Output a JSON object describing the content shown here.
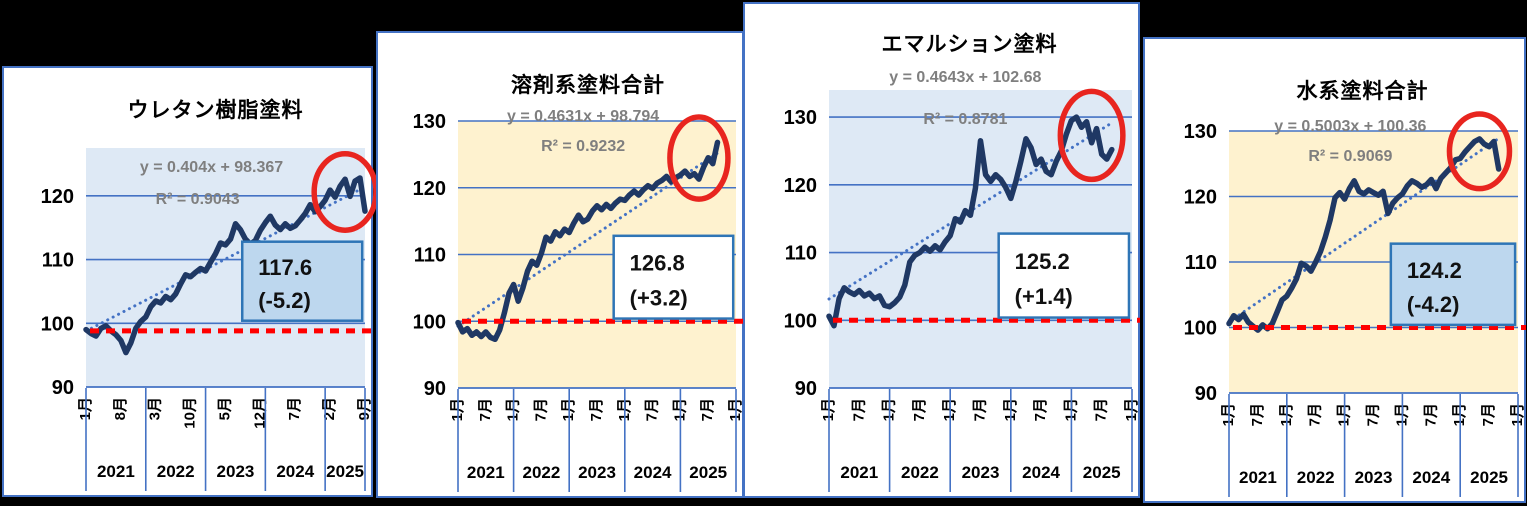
{
  "background": "#000000",
  "colors": {
    "grid": "#4472C4",
    "panel_border": "#4472C4",
    "data_line": "#1F3864",
    "trend_line": "#4472C4",
    "ref_line": "#FF0000",
    "ellipse": "#E8251F",
    "callout_border": "#2E75B6",
    "eq_text": "#7F7F7F",
    "plot_bg_blue": "#DEE9F5",
    "plot_bg_cream": "#FEF2CF"
  },
  "chart_data": [
    {
      "type": "line",
      "title": "ウレタン樹脂塗料",
      "equation": "y = 0.404x + 98.367",
      "r2_label": "R² = 0.9043",
      "trend": {
        "slope": 0.404,
        "intercept": 98.367
      },
      "callout": {
        "value": "117.6",
        "change": "(-5.2)",
        "fill": "#BDD7EE"
      },
      "plot_bg": "#DEE9F5",
      "ylim": [
        90,
        127.5
      ],
      "yticks": [
        90,
        100,
        110,
        120
      ],
      "ref_line": 98.8,
      "axis_slots": 57,
      "x_tick_labels": [
        "1月",
        "8月",
        "3月",
        "10月",
        "5月",
        "12月",
        "7月",
        "2月",
        "9月"
      ],
      "x_tick_idx": [
        0,
        7,
        14,
        21,
        28,
        35,
        42,
        49,
        56
      ],
      "year_labels": [
        "2021",
        "2022",
        "2023",
        "2024",
        "2025"
      ],
      "year_boundaries": [
        0,
        12,
        24,
        36,
        48,
        56
      ],
      "values": [
        99.0,
        98.4,
        98.0,
        99.2,
        99.6,
        98.8,
        98.2,
        97.3,
        95.4,
        96.9,
        99.2,
        100.3,
        101.0,
        102.6,
        103.5,
        103.2,
        104.2,
        103.7,
        104.6,
        106.2,
        107.6,
        107.3,
        108.0,
        108.6,
        108.2,
        109.6,
        110.9,
        112.6,
        112.3,
        113.2,
        115.6,
        114.7,
        113.2,
        112.4,
        113.0,
        114.6,
        115.8,
        116.8,
        115.4,
        114.7,
        115.6,
        114.9,
        115.3,
        116.2,
        117.2,
        118.6,
        117.5,
        118.3,
        119.3,
        120.9,
        119.8,
        121.5,
        122.6,
        119.9,
        122.3,
        122.8,
        117.6
      ]
    },
    {
      "type": "line",
      "title": "溶剤系塗料合計",
      "equation": "y = 0.4631x + 98.794",
      "r2_label": "R² = 0.9232",
      "trend": {
        "slope": 0.4631,
        "intercept": 98.794
      },
      "callout": {
        "value": "126.8",
        "change": "(+3.2)",
        "fill": "#FFFFFF"
      },
      "plot_bg": "#FEF2CF",
      "ylim": [
        90,
        130
      ],
      "yticks": [
        90,
        100,
        110,
        120,
        130
      ],
      "ref_line": 100,
      "axis_slots": 61,
      "x_tick_labels": [
        "1月",
        "7月",
        "1月",
        "7月",
        "1月",
        "7月",
        "1月",
        "7月",
        "1月",
        "7月",
        "1月"
      ],
      "x_tick_idx": [
        0,
        6,
        12,
        18,
        24,
        30,
        36,
        42,
        48,
        54,
        60
      ],
      "year_labels": [
        "2021",
        "2022",
        "2023",
        "2024",
        "2025"
      ],
      "year_boundaries": [
        0,
        12,
        24,
        36,
        48,
        60
      ],
      "values": [
        99.8,
        98.4,
        98.9,
        97.9,
        98.4,
        97.7,
        98.4,
        97.6,
        97.3,
        98.7,
        101.2,
        104.2,
        105.5,
        103.0,
        105.0,
        107.5,
        109.0,
        108.4,
        110.2,
        112.6,
        112.0,
        113.4,
        112.8,
        113.8,
        113.3,
        114.7,
        115.9,
        114.9,
        115.3,
        116.5,
        117.3,
        116.7,
        117.5,
        116.9,
        117.7,
        118.3,
        118.1,
        118.9,
        119.5,
        118.9,
        119.7,
        120.3,
        119.9,
        120.7,
        121.1,
        121.7,
        120.9,
        121.5,
        121.9,
        122.5,
        121.7,
        122.1,
        121.3,
        123.1,
        124.5,
        123.6,
        126.8
      ]
    },
    {
      "type": "line",
      "title": "エマルション塗料",
      "equation": "y = 0.4643x + 102.68",
      "r2_label": "R² = 0.8781",
      "trend": {
        "slope": 0.4643,
        "intercept": 102.68
      },
      "callout": {
        "value": "125.2",
        "change": "(+1.4)",
        "fill": "#FFFFFF"
      },
      "plot_bg": "#DEE9F5",
      "ylim": [
        90,
        134
      ],
      "yticks": [
        90,
        100,
        110,
        120,
        130
      ],
      "ref_line": 100,
      "axis_slots": 61,
      "x_tick_labels": [
        "1月",
        "7月",
        "1月",
        "7月",
        "1月",
        "7月",
        "1月",
        "7月",
        "1月",
        "7月",
        "1月"
      ],
      "x_tick_idx": [
        0,
        6,
        12,
        18,
        24,
        30,
        36,
        42,
        48,
        54,
        60
      ],
      "year_labels": [
        "2021",
        "2022",
        "2023",
        "2024",
        "2025"
      ],
      "year_boundaries": [
        0,
        12,
        24,
        36,
        48,
        60
      ],
      "values": [
        100.6,
        99.2,
        103.2,
        104.8,
        104.2,
        103.8,
        104.4,
        103.6,
        104.0,
        103.2,
        103.6,
        102.2,
        102.0,
        102.6,
        103.4,
        105.2,
        108.6,
        109.6,
        110.0,
        110.8,
        110.2,
        111.0,
        110.4,
        111.6,
        112.5,
        115.0,
        114.5,
        116.2,
        115.5,
        119.5,
        126.5,
        121.5,
        120.5,
        121.5,
        120.8,
        119.6,
        118.0,
        120.5,
        123.5,
        126.8,
        125.5,
        123.0,
        123.8,
        122.0,
        121.5,
        123.5,
        125.0,
        127.5,
        129.5,
        130.0,
        128.5,
        129.3,
        126.2,
        128.3,
        124.5,
        123.8,
        125.2
      ]
    },
    {
      "type": "line",
      "title": "水系塗料合計",
      "equation": "y = 0.5003x + 100.36",
      "r2_label": "R² = 0.9069",
      "trend": {
        "slope": 0.5003,
        "intercept": 100.36
      },
      "callout": {
        "value": "124.2",
        "change": "(-4.2)",
        "fill": "#BDD7EE"
      },
      "plot_bg": "#FEF2CF",
      "ylim": [
        90,
        130
      ],
      "yticks": [
        90,
        100,
        110,
        120,
        130
      ],
      "ref_line": 100,
      "axis_slots": 61,
      "x_tick_labels": [
        "1月",
        "7月",
        "1月",
        "7月",
        "1月",
        "7月",
        "1月",
        "7月",
        "1月",
        "7月",
        "1月"
      ],
      "x_tick_idx": [
        0,
        6,
        12,
        18,
        24,
        30,
        36,
        42,
        48,
        54,
        60
      ],
      "year_labels": [
        "2021",
        "2022",
        "2023",
        "2024",
        "2025"
      ],
      "year_boundaries": [
        0,
        12,
        24,
        36,
        48,
        60
      ],
      "values": [
        100.6,
        101.8,
        101.2,
        102.0,
        100.8,
        100.2,
        99.6,
        100.4,
        99.8,
        100.6,
        102.4,
        104.2,
        104.8,
        106.0,
        107.4,
        109.8,
        109.4,
        108.6,
        110.0,
        111.6,
        113.8,
        116.4,
        119.8,
        120.6,
        119.6,
        121.2,
        122.4,
        120.8,
        120.4,
        121.0,
        120.6,
        120.2,
        120.8,
        117.4,
        119.0,
        119.8,
        120.4,
        121.6,
        122.4,
        122.0,
        121.4,
        121.8,
        122.6,
        121.2,
        122.8,
        123.6,
        124.4,
        125.6,
        125.8,
        126.8,
        127.6,
        128.4,
        128.8,
        128.0,
        127.6,
        128.4,
        124.2
      ]
    }
  ]
}
